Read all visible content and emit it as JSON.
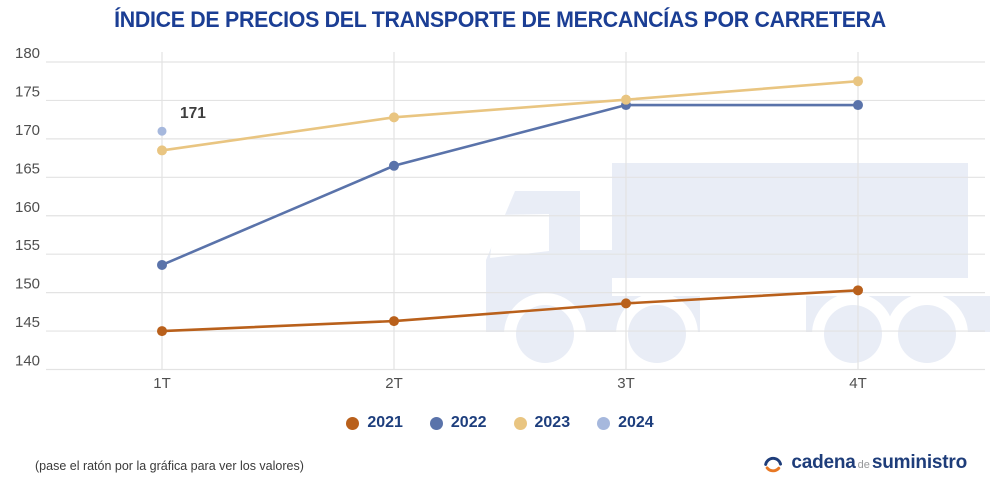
{
  "title": "ÍNDICE DE PRECIOS DEL TRANSPORTE DE MERCANCÍAS POR CARRETERA",
  "footnote": "(pase el ratón por la gráfica para ver los valores)",
  "logo": {
    "part1": "cadena",
    "part2": "de",
    "part3": "suministro"
  },
  "colors": {
    "title_text": "#1b3e94",
    "legend_text": "#1d3e7d",
    "grid": "#e3e3e3",
    "watermark": "#e9edf6",
    "axis_text": "#4f4f4f",
    "annotation_text": "#3e3e3e",
    "logo_navy": "#1e3d7a",
    "logo_orange": "#e87824"
  },
  "chart_data": {
    "type": "line",
    "title": "ÍNDICE DE PRECIOS DEL TRANSPORTE DE MERCANCÍAS POR CARRETERA",
    "categories": [
      "1T",
      "2T",
      "3T",
      "4T"
    ],
    "series": [
      {
        "name": "2021",
        "color": "#b9601b",
        "values": [
          145.0,
          146.3,
          148.6,
          150.3
        ]
      },
      {
        "name": "2022",
        "color": "#5a73aa",
        "values": [
          153.6,
          166.5,
          174.4,
          174.4
        ]
      },
      {
        "name": "2023",
        "color": "#e9c581",
        "values": [
          168.5,
          172.8,
          175.1,
          177.5
        ]
      },
      {
        "name": "2024",
        "color": "#a6b8dd",
        "values": [
          171
        ]
      }
    ],
    "annotation": {
      "text": "171",
      "series": "2024",
      "category": "1T",
      "value": 171
    },
    "xlabel": "",
    "ylabel": "",
    "ylim": [
      140,
      180
    ],
    "yticks": [
      140,
      145,
      150,
      155,
      160,
      165,
      170,
      175,
      180
    ],
    "grid": true,
    "legend_position": "bottom"
  }
}
